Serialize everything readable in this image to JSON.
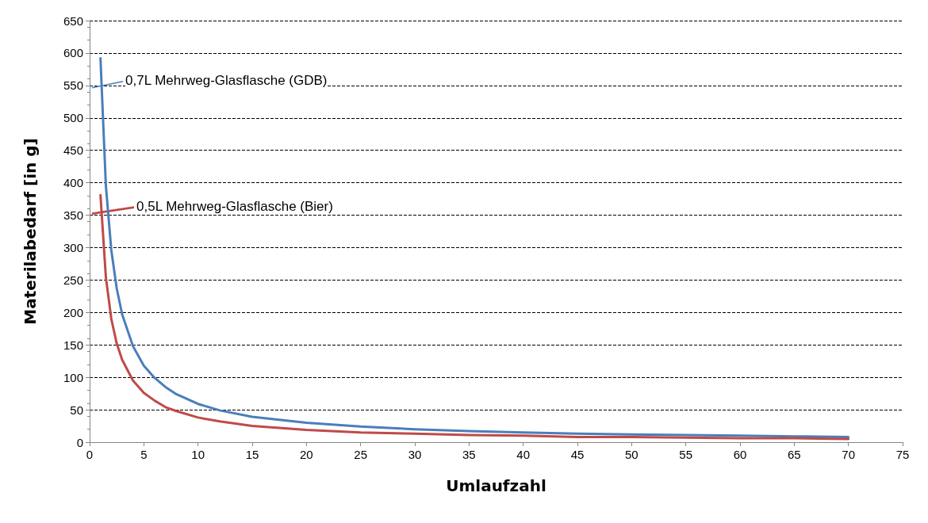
{
  "chart_data": {
    "type": "line",
    "xlabel": "Umlaufzahl",
    "ylabel": "Materilabedarf [in g]",
    "xlim": [
      0,
      75
    ],
    "xticks": [
      0,
      5,
      10,
      15,
      20,
      25,
      30,
      35,
      40,
      45,
      50,
      55,
      60,
      65,
      70,
      75
    ],
    "ylim": [
      0,
      650
    ],
    "yticks": [
      0,
      50,
      100,
      150,
      200,
      250,
      300,
      350,
      400,
      450,
      500,
      550,
      600,
      650
    ],
    "grid": "y",
    "marker": "none",
    "line_style": "solid",
    "x": [
      1,
      1.5,
      2,
      2.5,
      3,
      4,
      5,
      6,
      7,
      8,
      10,
      12,
      15,
      20,
      25,
      30,
      35,
      40,
      45,
      50,
      55,
      60,
      65,
      70
    ],
    "series": [
      {
        "color": "#4a7ebb",
        "values": [
          592,
          395,
          296,
          237,
          197,
          148,
          118,
          99,
          85,
          74,
          59,
          49,
          39,
          30,
          24,
          20,
          17,
          15,
          13,
          12,
          11,
          10,
          9,
          8
        ]
      },
      {
        "color": "#be4b48",
        "values": [
          381,
          254,
          190,
          152,
          127,
          95,
          76,
          64,
          54,
          48,
          38,
          32,
          25,
          19,
          15,
          13,
          11,
          10,
          8,
          8,
          7,
          6,
          6,
          5
        ]
      }
    ],
    "annotations": [
      {
        "text": "0,7L Mehrweg-Glasflasche (GDB)",
        "x": 1.1,
        "y": 550
      },
      {
        "text": "0,5L Mehrweg-Glasflasche (Bier)",
        "x": 1.1,
        "y": 356
      }
    ]
  }
}
